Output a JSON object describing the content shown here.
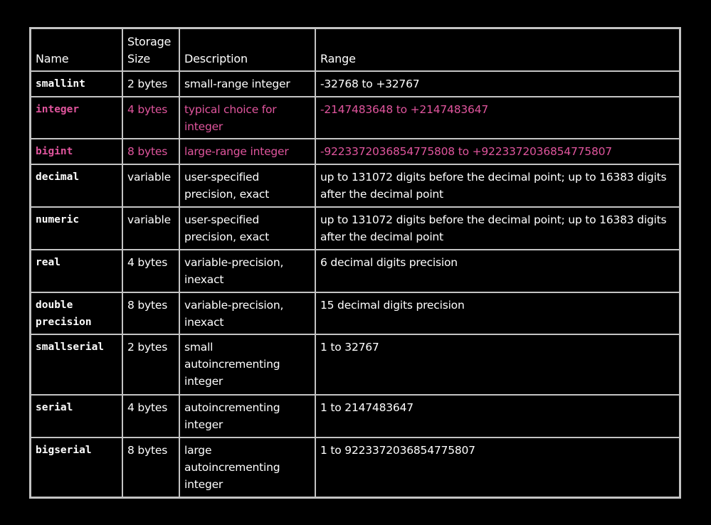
{
  "header": {
    "name": "Name",
    "storage": "Storage Size",
    "description": "Description",
    "range": "Range"
  },
  "highlight_color": "#e0559d",
  "rows": [
    {
      "name": "smallint",
      "storage": "2 bytes",
      "description": "small-range integer",
      "range": "-32768 to +32767",
      "highlighted": false
    },
    {
      "name": "integer",
      "storage": "4 bytes",
      "description": "typical choice for integer",
      "range": "-2147483648 to +2147483647",
      "highlighted": true
    },
    {
      "name": "bigint",
      "storage": "8 bytes",
      "description": "large-range integer",
      "range": "-9223372036854775808 to +9223372036854775807",
      "highlighted": true
    },
    {
      "name": "decimal",
      "storage": "variable",
      "description": "user-specified precision, exact",
      "range": "up to 131072 digits before the decimal point; up to 16383 digits after the decimal point",
      "highlighted": false
    },
    {
      "name": "numeric",
      "storage": "variable",
      "description": "user-specified precision, exact",
      "range": "up to 131072 digits before the decimal point; up to 16383 digits after the decimal point",
      "highlighted": false
    },
    {
      "name": "real",
      "storage": "4 bytes",
      "description": "variable-precision, inexact",
      "range": "6 decimal digits precision",
      "highlighted": false
    },
    {
      "name": "double precision",
      "storage": "8 bytes",
      "description": "variable-precision, inexact",
      "range": "15 decimal digits precision",
      "highlighted": false
    },
    {
      "name": "smallserial",
      "storage": "2 bytes",
      "description": "small autoincrementing integer",
      "range": "1 to 32767",
      "highlighted": false
    },
    {
      "name": "serial",
      "storage": "4 bytes",
      "description": "autoincrementing integer",
      "range": "1 to 2147483647",
      "highlighted": false
    },
    {
      "name": "bigserial",
      "storage": "8 bytes",
      "description": "large autoincrementing integer",
      "range": "1 to 9223372036854775807",
      "highlighted": false
    }
  ]
}
